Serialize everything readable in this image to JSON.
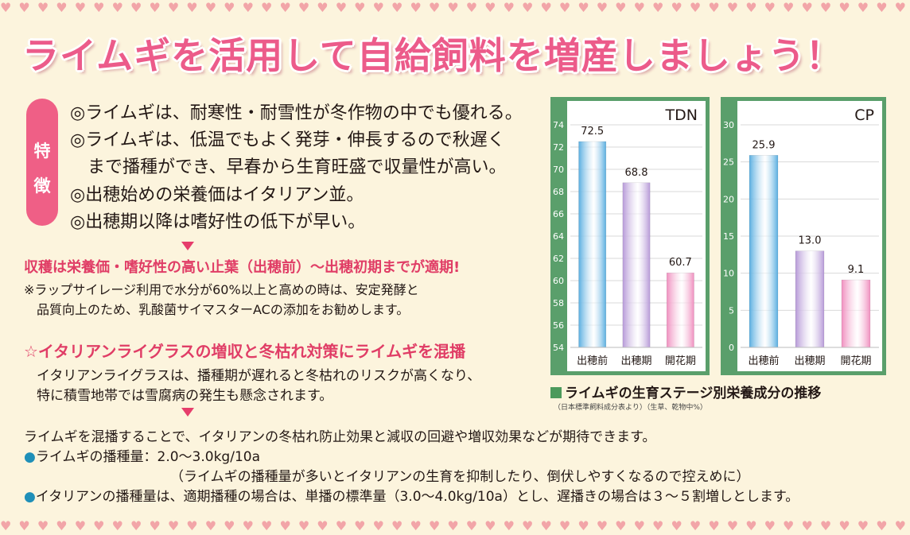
{
  "title": "ライムギを活用して自給飼料を増産しましょう！",
  "feature_tag": [
    "特",
    "徴"
  ],
  "features": [
    "◎ライムギは、耐寒性・耐雪性が冬作物の中でも優れる。",
    "◎ライムギは、低温でもよく発芽・伸長するので秋遅く",
    "　まで播種ができ、早春から生育旺盛で収量性が高い。",
    "◎出穂始めの栄養価はイタリアン並。",
    "◎出穂期以降は嗜好性の低下が早い。"
  ],
  "harvest": {
    "heading": "収穫は栄養価・嗜好性の高い止葉（出穂前）～出穂初期までが適期!",
    "note_lines": [
      "※ラップサイレージ利用で水分が60%以上と高めの時は、安定発酵と",
      "　品質向上のため、乳酸菌サイマスターACの添加をお勧めします。"
    ]
  },
  "mix": {
    "heading": "☆イタリアンライグラスの増収と冬枯れ対策にライムギを混播",
    "note_lines": [
      "イタリアンライグラスは、播種期が遅れると冬枯れのリスクが高くなり、",
      "特に積雪地帯では雪腐病の発生も懸念されます。"
    ]
  },
  "bottom": {
    "line1": "ライムギを混播することで、イタリアンの冬枯れ防止効果と減収の回避や増収効果などが期待できます。",
    "bullet1": "ライムギの播種量：2.0～3.0kg/10a",
    "bullet1_note": "（ライムギの播種量が多いとイタリアンの生育を抑制したり、倒伏しやすくなるので控えめに）",
    "bullet2": "イタリアンの播種量は、適期播種の場合は、単播の標準量（3.0～4.0kg/10a）とし、遅播きの場合は３～５割増しとします。"
  },
  "chart_caption": "ライムギの生育ステージ別栄養成分の推移",
  "chart_source": "（日本標準飼料成分表より）（生草、乾物中%）",
  "chart_data": [
    {
      "type": "bar",
      "title": "TDN",
      "categories": [
        "出穂前",
        "出穂期",
        "開花期"
      ],
      "values": [
        72.5,
        68.8,
        60.7
      ],
      "value_labels": [
        "72.5",
        "68.8",
        "60.7"
      ],
      "ylim": [
        54,
        74
      ],
      "yticks": [
        54,
        56,
        58,
        60,
        62,
        64,
        66,
        68,
        70,
        72,
        74
      ],
      "grid": true,
      "colors": [
        "#5aaee0",
        "#b79ad8",
        "#f08fbf"
      ]
    },
    {
      "type": "bar",
      "title": "CP",
      "categories": [
        "出穂前",
        "出穂期",
        "開花期"
      ],
      "values": [
        25.9,
        13.0,
        9.1
      ],
      "value_labels": [
        "25.9",
        "13.0",
        "9.1"
      ],
      "ylim": [
        0,
        30
      ],
      "yticks": [
        0,
        5,
        10,
        15,
        20,
        25,
        30
      ],
      "grid": true,
      "colors": [
        "#5aaee0",
        "#b79ad8",
        "#f08fbf"
      ]
    }
  ]
}
